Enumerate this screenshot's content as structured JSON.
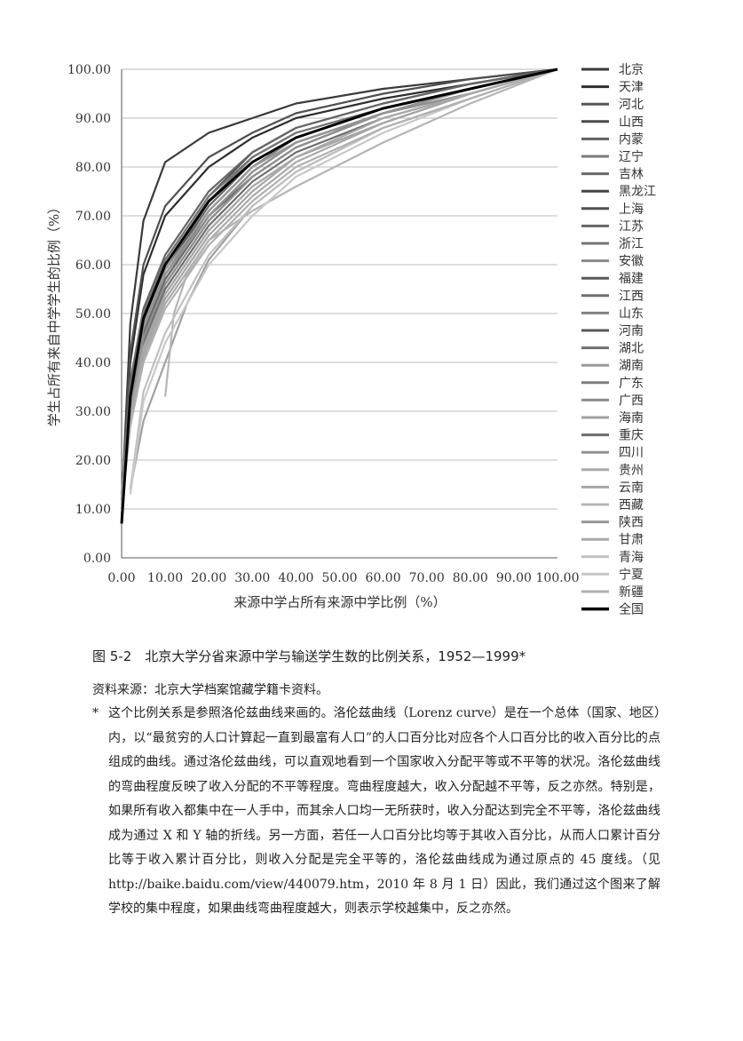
{
  "chart_data": {
    "type": "line",
    "title": "",
    "xlabel": "来源中学占所有来源中学比例（%）",
    "ylabel": "学生占所有来自中学学生的比例（%）",
    "xlim": [
      0,
      100
    ],
    "ylim": [
      0,
      100
    ],
    "x_ticks": [
      "0.00",
      "10.00",
      "20.00",
      "30.00",
      "40.00",
      "50.00",
      "60.00",
      "70.00",
      "80.00",
      "90.00",
      "100.00"
    ],
    "y_ticks": [
      "0.00",
      "10.00",
      "20.00",
      "30.00",
      "40.00",
      "50.00",
      "60.00",
      "70.00",
      "80.00",
      "90.00",
      "100.00"
    ],
    "grid": "horizontal",
    "legend_position": "right",
    "series": [
      {
        "name": "北京",
        "color": "#3a3a3a",
        "x": [
          0,
          2,
          5,
          10,
          20,
          30,
          40,
          60,
          80,
          100
        ],
        "y": [
          10,
          48,
          69,
          81,
          87,
          90,
          93,
          96,
          98,
          100
        ]
      },
      {
        "name": "天津",
        "color": "#2e2e2e",
        "x": [
          0,
          2,
          5,
          10,
          20,
          30,
          40,
          60,
          80,
          100
        ],
        "y": [
          8,
          40,
          58,
          70,
          80,
          86,
          90,
          94,
          97,
          100
        ]
      },
      {
        "name": "河北",
        "color": "#555555",
        "x": [
          0,
          2,
          5,
          10,
          20,
          30,
          40,
          60,
          80,
          100
        ],
        "y": [
          12,
          35,
          50,
          61,
          74,
          83,
          88,
          93,
          97,
          100
        ]
      },
      {
        "name": "山西",
        "color": "#4a4a4a",
        "x": [
          0,
          2,
          5,
          10,
          20,
          30,
          40,
          60,
          80,
          100
        ],
        "y": [
          12,
          33,
          48,
          59,
          72,
          81,
          86,
          92,
          96,
          100
        ]
      },
      {
        "name": "内蒙",
        "color": "#606060",
        "x": [
          0,
          2,
          5,
          10,
          20,
          30,
          40,
          60,
          80,
          100
        ],
        "y": [
          11,
          30,
          45,
          56,
          69,
          78,
          84,
          91,
          96,
          100
        ]
      },
      {
        "name": "辽宁",
        "color": "#7a7a7a",
        "x": [
          0,
          2,
          5,
          10,
          20,
          30,
          40,
          60,
          80,
          100
        ],
        "y": [
          12,
          34,
          49,
          60,
          73,
          82,
          87,
          92,
          96,
          100
        ]
      },
      {
        "name": "吉林",
        "color": "#6a6a6a",
        "x": [
          0,
          2,
          5,
          10,
          20,
          30,
          40,
          60,
          80,
          100
        ],
        "y": [
          12,
          32,
          46,
          57,
          70,
          79,
          85,
          91,
          96,
          100
        ]
      },
      {
        "name": "黑龙江",
        "color": "#454545",
        "x": [
          0,
          2,
          5,
          10,
          20,
          30,
          40,
          60,
          80,
          100
        ],
        "y": [
          12,
          33,
          48,
          58,
          71,
          80,
          86,
          92,
          96,
          100
        ]
      },
      {
        "name": "上海",
        "color": "#505050",
        "x": [
          0,
          2,
          5,
          10,
          20,
          30,
          40,
          60,
          80,
          100
        ],
        "y": [
          10,
          42,
          60,
          72,
          82,
          87,
          91,
          95,
          98,
          100
        ]
      },
      {
        "name": "江苏",
        "color": "#666666",
        "x": [
          0,
          2,
          5,
          10,
          20,
          30,
          40,
          60,
          80,
          100
        ],
        "y": [
          13,
          36,
          51,
          62,
          75,
          83,
          88,
          93,
          97,
          100
        ]
      },
      {
        "name": "浙江",
        "color": "#757575",
        "x": [
          0,
          2,
          5,
          10,
          20,
          30,
          40,
          60,
          80,
          100
        ],
        "y": [
          13,
          35,
          50,
          61,
          74,
          82,
          87,
          92,
          96,
          100
        ]
      },
      {
        "name": "安徽",
        "color": "#8a8a8a",
        "x": [
          0,
          2,
          5,
          10,
          20,
          30,
          40,
          60,
          80,
          100
        ],
        "y": [
          12,
          31,
          45,
          56,
          69,
          78,
          84,
          91,
          95,
          100
        ]
      },
      {
        "name": "福建",
        "color": "#5c5c5c",
        "x": [
          0,
          2,
          5,
          10,
          20,
          30,
          40,
          60,
          80,
          100
        ],
        "y": [
          12,
          34,
          49,
          60,
          73,
          81,
          86,
          92,
          96,
          100
        ]
      },
      {
        "name": "江西",
        "color": "#6e6e6e",
        "x": [
          0,
          2,
          5,
          10,
          20,
          30,
          40,
          60,
          80,
          100
        ],
        "y": [
          11,
          30,
          44,
          55,
          68,
          77,
          83,
          90,
          95,
          100
        ]
      },
      {
        "name": "山东",
        "color": "#808080",
        "x": [
          0,
          2,
          5,
          10,
          20,
          30,
          40,
          60,
          80,
          100
        ],
        "y": [
          12,
          33,
          47,
          58,
          71,
          80,
          86,
          92,
          96,
          100
        ]
      },
      {
        "name": "河南",
        "color": "#585858",
        "x": [
          0,
          2,
          5,
          10,
          20,
          30,
          40,
          60,
          80,
          100
        ],
        "y": [
          12,
          32,
          46,
          57,
          70,
          79,
          85,
          91,
          96,
          100
        ]
      },
      {
        "name": "湖北",
        "color": "#707070",
        "x": [
          0,
          2,
          5,
          10,
          20,
          30,
          40,
          60,
          80,
          100
        ],
        "y": [
          12,
          34,
          49,
          60,
          72,
          81,
          86,
          92,
          96,
          100
        ]
      },
      {
        "name": "湖南",
        "color": "#999999",
        "x": [
          0,
          2,
          5,
          10,
          20,
          30,
          40,
          60,
          80,
          100
        ],
        "y": [
          12,
          33,
          48,
          59,
          71,
          80,
          85,
          91,
          96,
          100
        ]
      },
      {
        "name": "广东",
        "color": "#7d7d7d",
        "x": [
          0,
          2,
          5,
          10,
          20,
          30,
          40,
          60,
          80,
          100
        ],
        "y": [
          12,
          31,
          46,
          57,
          70,
          79,
          85,
          91,
          95,
          100
        ]
      },
      {
        "name": "广西",
        "color": "#8c8c8c",
        "x": [
          0,
          2,
          5,
          10,
          20,
          30,
          40,
          60,
          80,
          100
        ],
        "y": [
          11,
          29,
          43,
          54,
          67,
          76,
          82,
          89,
          95,
          100
        ]
      },
      {
        "name": "海南",
        "color": "#a0a0a0",
        "x": [
          2,
          5,
          10,
          15,
          20,
          30,
          40,
          60,
          80,
          100
        ],
        "y": [
          14,
          28,
          40,
          52,
          61,
          72,
          79,
          88,
          94,
          100
        ]
      },
      {
        "name": "重庆",
        "color": "#6b6b6b",
        "x": [
          0,
          2,
          5,
          10,
          20,
          30,
          40,
          60,
          80,
          100
        ],
        "y": [
          11,
          31,
          46,
          57,
          70,
          78,
          84,
          91,
          96,
          100
        ]
      },
      {
        "name": "四川",
        "color": "#909090",
        "x": [
          0,
          2,
          5,
          10,
          20,
          30,
          40,
          60,
          80,
          100
        ],
        "y": [
          11,
          30,
          45,
          56,
          69,
          78,
          84,
          91,
          95,
          100
        ]
      },
      {
        "name": "贵州",
        "color": "#aaaaaa",
        "x": [
          0,
          2,
          5,
          10,
          20,
          30,
          40,
          60,
          80,
          100
        ],
        "y": [
          10,
          27,
          41,
          52,
          65,
          74,
          81,
          89,
          95,
          100
        ]
      },
      {
        "name": "云南",
        "color": "#a5a5a5",
        "x": [
          0,
          2,
          5,
          10,
          20,
          30,
          40,
          60,
          80,
          100
        ],
        "y": [
          10,
          28,
          42,
          53,
          66,
          75,
          82,
          89,
          95,
          100
        ]
      },
      {
        "name": "西藏",
        "color": "#b5b5b5",
        "x": [
          10,
          12,
          15,
          20,
          30,
          40,
          60,
          80,
          100
        ],
        "y": [
          33,
          50,
          58,
          65,
          71,
          76,
          85,
          93,
          100
        ]
      },
      {
        "name": "陕西",
        "color": "#959595",
        "x": [
          0,
          2,
          5,
          10,
          20,
          30,
          40,
          60,
          80,
          100
        ],
        "y": [
          12,
          32,
          47,
          58,
          70,
          79,
          85,
          91,
          96,
          100
        ]
      },
      {
        "name": "甘肃",
        "color": "#a8a8a8",
        "x": [
          0,
          2,
          5,
          10,
          20,
          30,
          40,
          60,
          80,
          100
        ],
        "y": [
          11,
          29,
          43,
          54,
          67,
          76,
          82,
          90,
          95,
          100
        ]
      },
      {
        "name": "青海",
        "color": "#c0c0c0",
        "x": [
          2,
          5,
          10,
          20,
          30,
          40,
          60,
          80,
          100
        ],
        "y": [
          14,
          34,
          46,
          62,
          72,
          79,
          88,
          94,
          100
        ]
      },
      {
        "name": "宁夏",
        "color": "#c8c8c8",
        "x": [
          2,
          5,
          10,
          20,
          30,
          40,
          60,
          80,
          100
        ],
        "y": [
          13,
          32,
          44,
          60,
          70,
          78,
          87,
          94,
          100
        ]
      },
      {
        "name": "新疆",
        "color": "#b0b0b0",
        "x": [
          0,
          2,
          5,
          10,
          20,
          30,
          40,
          60,
          80,
          100
        ],
        "y": [
          10,
          27,
          40,
          51,
          64,
          73,
          80,
          88,
          94,
          100
        ]
      },
      {
        "name": "全国",
        "color": "#000000",
        "x": [
          0,
          2,
          5,
          10,
          20,
          30,
          40,
          60,
          80,
          100
        ],
        "y": [
          7,
          33,
          49,
          60,
          73,
          81,
          86,
          92,
          96,
          100
        ]
      }
    ]
  },
  "caption": "图 5-2　北京大学分省来源中学与输送学生数的比例关系，1952—1999*",
  "source": "资料来源：北京大学档案馆藏学籍卡资料。",
  "note": {
    "marker": "*",
    "text": "这个比例关系是参照洛伦兹曲线来画的。洛伦兹曲线（Lorenz curve）是在一个总体（国家、地区）内，以“最贫穷的人口计算起一直到最富有人口”的人口百分比对应各个人口百分比的收入百分比的点组成的曲线。通过洛伦兹曲线，可以直观地看到一个国家收入分配平等或不平等的状况。洛伦兹曲线的弯曲程度反映了收入分配的不平等程度。弯曲程度越大，收入分配越不平等，反之亦然。特别是，如果所有收入都集中在一人手中，而其余人口均一无所获时，收入分配达到完全不平等，洛伦兹曲线成为通过 X 和 Y 轴的折线。另一方面，若任一人口百分比均等于其收入百分比，从而人口累计百分比等于收入累计百分比，则收入分配是完全平等的，洛伦兹曲线成为通过原点的 45 度线。（见 http://baike.baidu.com/view/440079.htm，2010 年 8 月 1 日）因此，我们通过这个图来了解学校的集中程度，如果曲线弯曲程度越大，则表示学校越集中，反之亦然。"
  }
}
